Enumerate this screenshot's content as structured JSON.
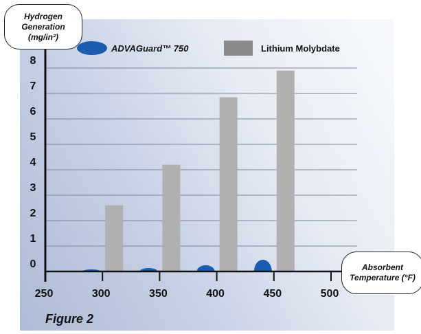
{
  "chart_data": {
    "type": "bar",
    "ylabel_lines": [
      "Hydrogen",
      "Generation",
      "(mg/in²)"
    ],
    "xlabel_lines": [
      "Absorbent",
      "Temperature (°F)"
    ],
    "caption": "Figure 2",
    "x_ticks": [
      250,
      300,
      350,
      400,
      450,
      500
    ],
    "y_ticks": [
      0,
      1,
      2,
      3,
      4,
      5,
      6,
      7,
      8
    ],
    "xlim": [
      250,
      500
    ],
    "ylim": [
      0,
      8
    ],
    "grid": true,
    "legend_placement": "top",
    "series": [
      {
        "name": "ADVAGuard™ 750",
        "marker": "half-ellipse",
        "color": "#1a5cb0",
        "x": [
          300,
          350,
          400,
          450
        ],
        "values": [
          0.0,
          0.05,
          0.15,
          0.35
        ]
      },
      {
        "name": "Lithium Molybdate",
        "marker": "bar",
        "color": "#b0b0b0",
        "legend_color": "#8a8a8a",
        "x": [
          300,
          350,
          400,
          450
        ],
        "values": [
          2.6,
          4.2,
          6.85,
          7.9
        ]
      }
    ]
  }
}
